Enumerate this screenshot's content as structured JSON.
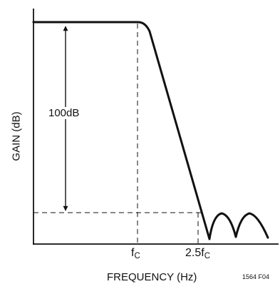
{
  "diagram": {
    "y_axis_label": "GAIN (dB)",
    "x_axis_label": "FREQUENCY (Hz)",
    "annotation": "100dB",
    "x_ticks": [
      {
        "base": "f",
        "subscript": "C"
      },
      {
        "base": "2.5f",
        "subscript": "C"
      }
    ],
    "figure_id": "1564 F04"
  },
  "colors": {
    "ink": "#111111",
    "background": "#ffffff"
  }
}
